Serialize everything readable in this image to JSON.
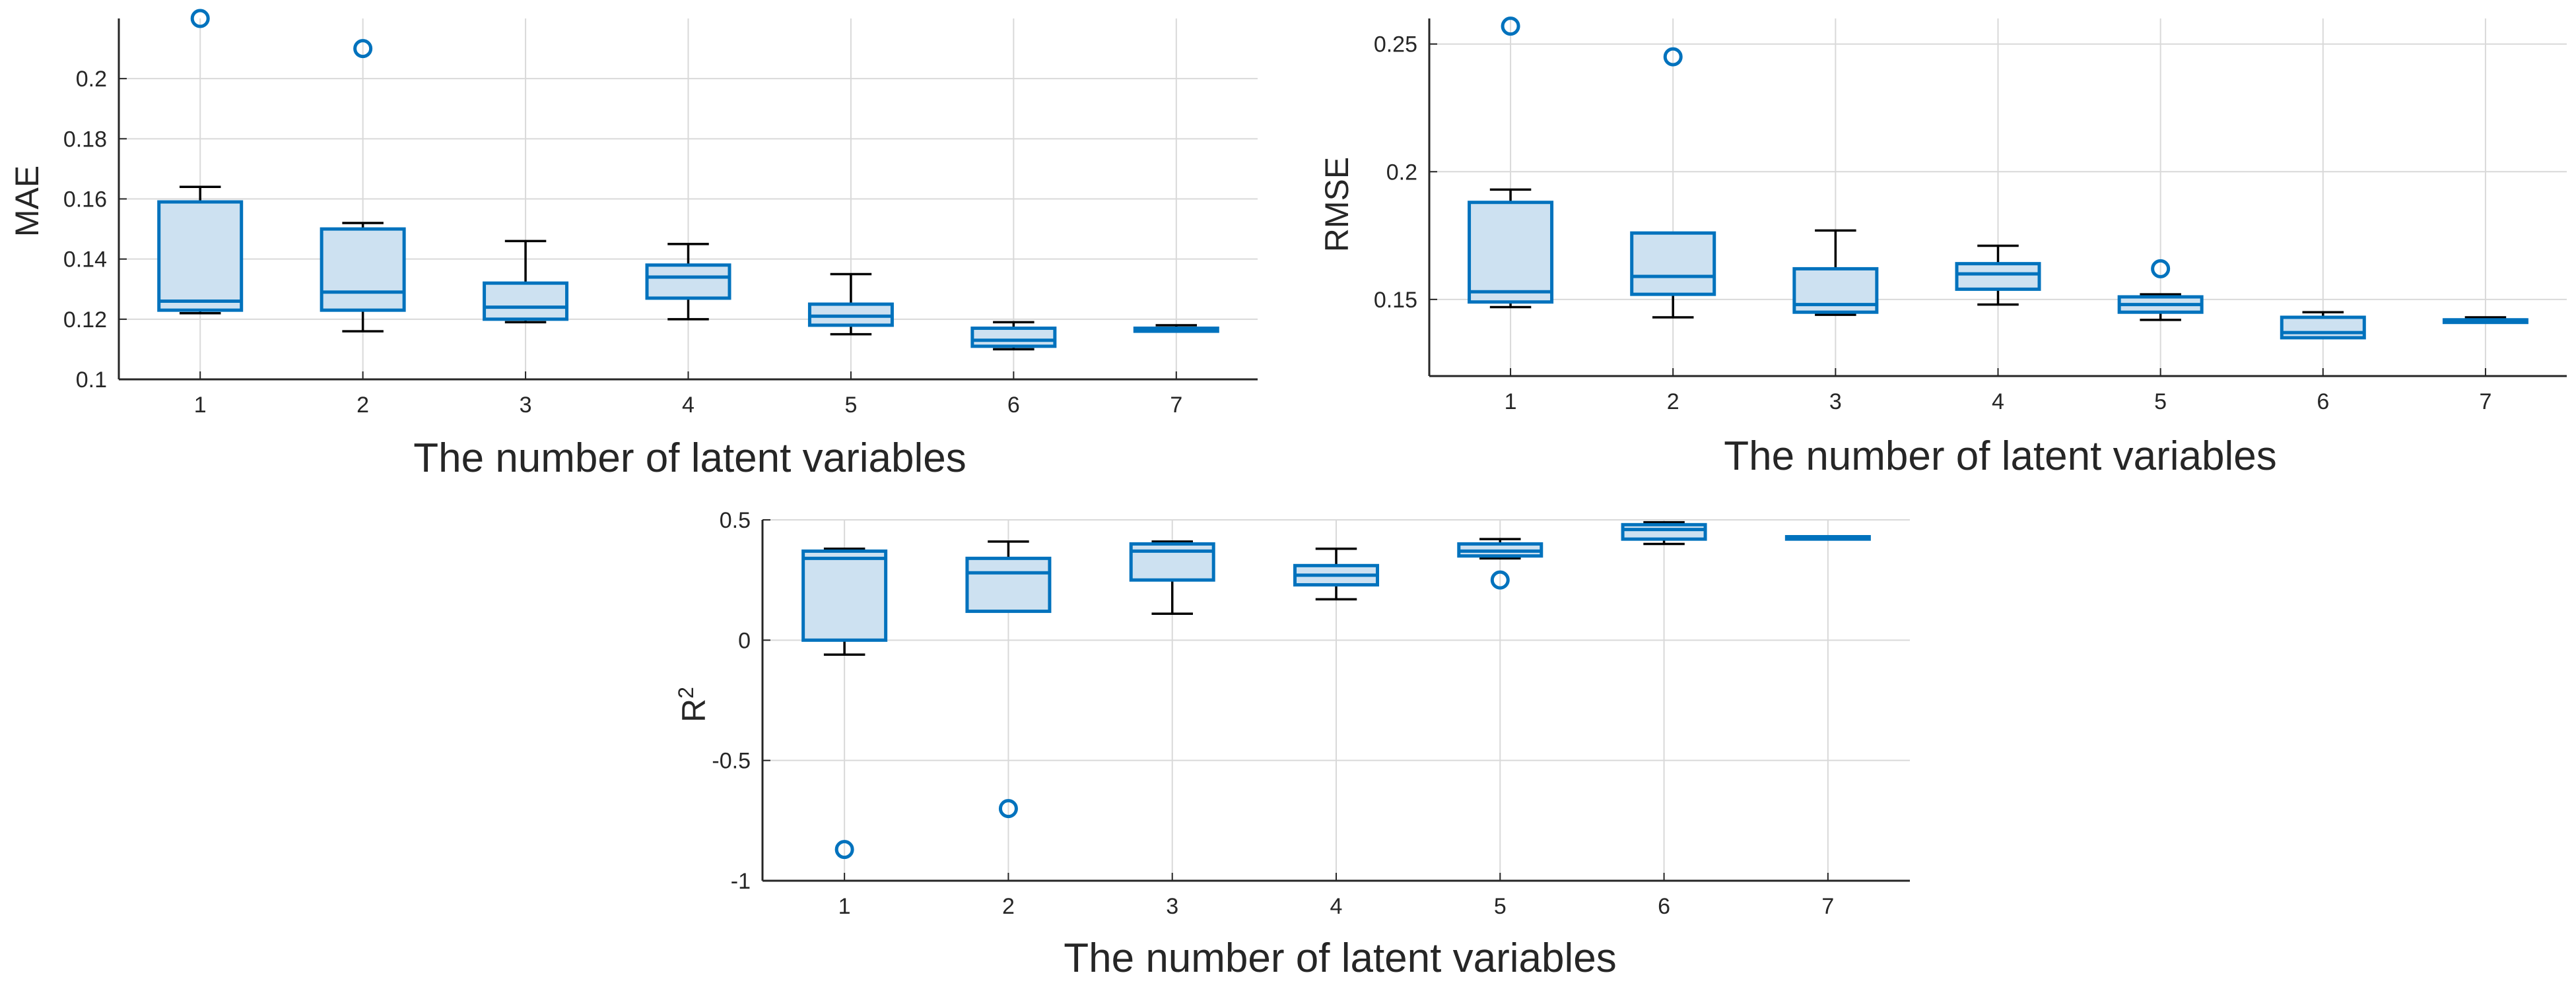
{
  "chart_data": [
    {
      "type": "boxplot",
      "id": "mae",
      "xlabel": "The number of latent variables",
      "ylabel": "MAE",
      "ylabel_sup": "",
      "categories": [
        "1",
        "2",
        "3",
        "4",
        "5",
        "6",
        "7"
      ],
      "ylim": [
        0.1,
        0.22
      ],
      "yticks": [
        0.1,
        0.12,
        0.14,
        0.16,
        0.18,
        0.2
      ],
      "ytick_labels": [
        "0.1",
        "0.12",
        "0.14",
        "0.16",
        "0.18",
        "0.2"
      ],
      "grid": true,
      "boxes": [
        {
          "lower_whisker": 0.122,
          "q1": 0.123,
          "median": 0.126,
          "q3": 0.159,
          "upper_whisker": 0.164,
          "outliers": [
            0.22
          ]
        },
        {
          "lower_whisker": 0.116,
          "q1": 0.123,
          "median": 0.129,
          "q3": 0.15,
          "upper_whisker": 0.152,
          "outliers": [
            0.21
          ]
        },
        {
          "lower_whisker": 0.119,
          "q1": 0.12,
          "median": 0.124,
          "q3": 0.132,
          "upper_whisker": 0.146,
          "outliers": []
        },
        {
          "lower_whisker": 0.12,
          "q1": 0.127,
          "median": 0.134,
          "q3": 0.138,
          "upper_whisker": 0.145,
          "outliers": []
        },
        {
          "lower_whisker": 0.115,
          "q1": 0.118,
          "median": 0.121,
          "q3": 0.125,
          "upper_whisker": 0.135,
          "outliers": []
        },
        {
          "lower_whisker": 0.11,
          "q1": 0.111,
          "median": 0.113,
          "q3": 0.117,
          "upper_whisker": 0.119,
          "outliers": []
        },
        {
          "lower_whisker": 0.116,
          "q1": 0.116,
          "median": 0.117,
          "q3": 0.117,
          "upper_whisker": 0.118,
          "outliers": []
        }
      ]
    },
    {
      "type": "boxplot",
      "id": "rmse",
      "xlabel": "The number of latent variables",
      "ylabel": "RMSE",
      "ylabel_sup": "",
      "categories": [
        "1",
        "2",
        "3",
        "4",
        "5",
        "6",
        "7"
      ],
      "ylim": [
        0.12,
        0.26
      ],
      "yticks": [
        0.15,
        0.2,
        0.25
      ],
      "ytick_labels": [
        "0.15",
        "0.2",
        "0.25"
      ],
      "grid": true,
      "boxes": [
        {
          "lower_whisker": 0.147,
          "q1": 0.149,
          "median": 0.153,
          "q3": 0.188,
          "upper_whisker": 0.193,
          "outliers": [
            0.257
          ]
        },
        {
          "lower_whisker": 0.143,
          "q1": 0.152,
          "median": 0.159,
          "q3": 0.176,
          "upper_whisker": 0.176,
          "outliers": [
            0.245
          ]
        },
        {
          "lower_whisker": 0.144,
          "q1": 0.145,
          "median": 0.148,
          "q3": 0.162,
          "upper_whisker": 0.177,
          "outliers": []
        },
        {
          "lower_whisker": 0.148,
          "q1": 0.154,
          "median": 0.16,
          "q3": 0.164,
          "upper_whisker": 0.171,
          "outliers": []
        },
        {
          "lower_whisker": 0.142,
          "q1": 0.145,
          "median": 0.148,
          "q3": 0.151,
          "upper_whisker": 0.152,
          "outliers": [
            0.162
          ]
        },
        {
          "lower_whisker": 0.135,
          "q1": 0.135,
          "median": 0.137,
          "q3": 0.143,
          "upper_whisker": 0.145,
          "outliers": []
        },
        {
          "lower_whisker": 0.141,
          "q1": 0.141,
          "median": 0.142,
          "q3": 0.142,
          "upper_whisker": 0.143,
          "outliers": []
        }
      ]
    },
    {
      "type": "boxplot",
      "id": "r2",
      "xlabel": "The number of latent variables",
      "ylabel": "R",
      "ylabel_sup": "2",
      "categories": [
        "1",
        "2",
        "3",
        "4",
        "5",
        "6",
        "7"
      ],
      "ylim": [
        -1,
        0.5
      ],
      "yticks": [
        -1,
        -0.5,
        0,
        0.5
      ],
      "ytick_labels": [
        "-1",
        "-0.5",
        "0",
        "0.5"
      ],
      "grid": true,
      "boxes": [
        {
          "lower_whisker": -0.06,
          "q1": 0.0,
          "median": 0.34,
          "q3": 0.37,
          "upper_whisker": 0.38,
          "outliers": [
            -0.87
          ]
        },
        {
          "lower_whisker": 0.12,
          "q1": 0.12,
          "median": 0.28,
          "q3": 0.34,
          "upper_whisker": 0.41,
          "outliers": [
            -0.7
          ]
        },
        {
          "lower_whisker": 0.11,
          "q1": 0.25,
          "median": 0.37,
          "q3": 0.4,
          "upper_whisker": 0.41,
          "outliers": []
        },
        {
          "lower_whisker": 0.17,
          "q1": 0.23,
          "median": 0.27,
          "q3": 0.31,
          "upper_whisker": 0.38,
          "outliers": []
        },
        {
          "lower_whisker": 0.34,
          "q1": 0.35,
          "median": 0.37,
          "q3": 0.4,
          "upper_whisker": 0.42,
          "outliers": [
            0.25
          ]
        },
        {
          "lower_whisker": 0.4,
          "q1": 0.42,
          "median": 0.46,
          "q3": 0.48,
          "upper_whisker": 0.49,
          "outliers": []
        },
        {
          "lower_whisker": 0.42,
          "q1": 0.42,
          "median": 0.43,
          "q3": 0.43,
          "upper_whisker": 0.43,
          "outliers": []
        }
      ]
    }
  ],
  "colors": {
    "box_edge": "#0072BD",
    "box_fill": "#CDE1F1",
    "whisker": "#000000",
    "outlier": "#0072BD",
    "grid": "#D9D9D9",
    "axis": "#262626"
  }
}
